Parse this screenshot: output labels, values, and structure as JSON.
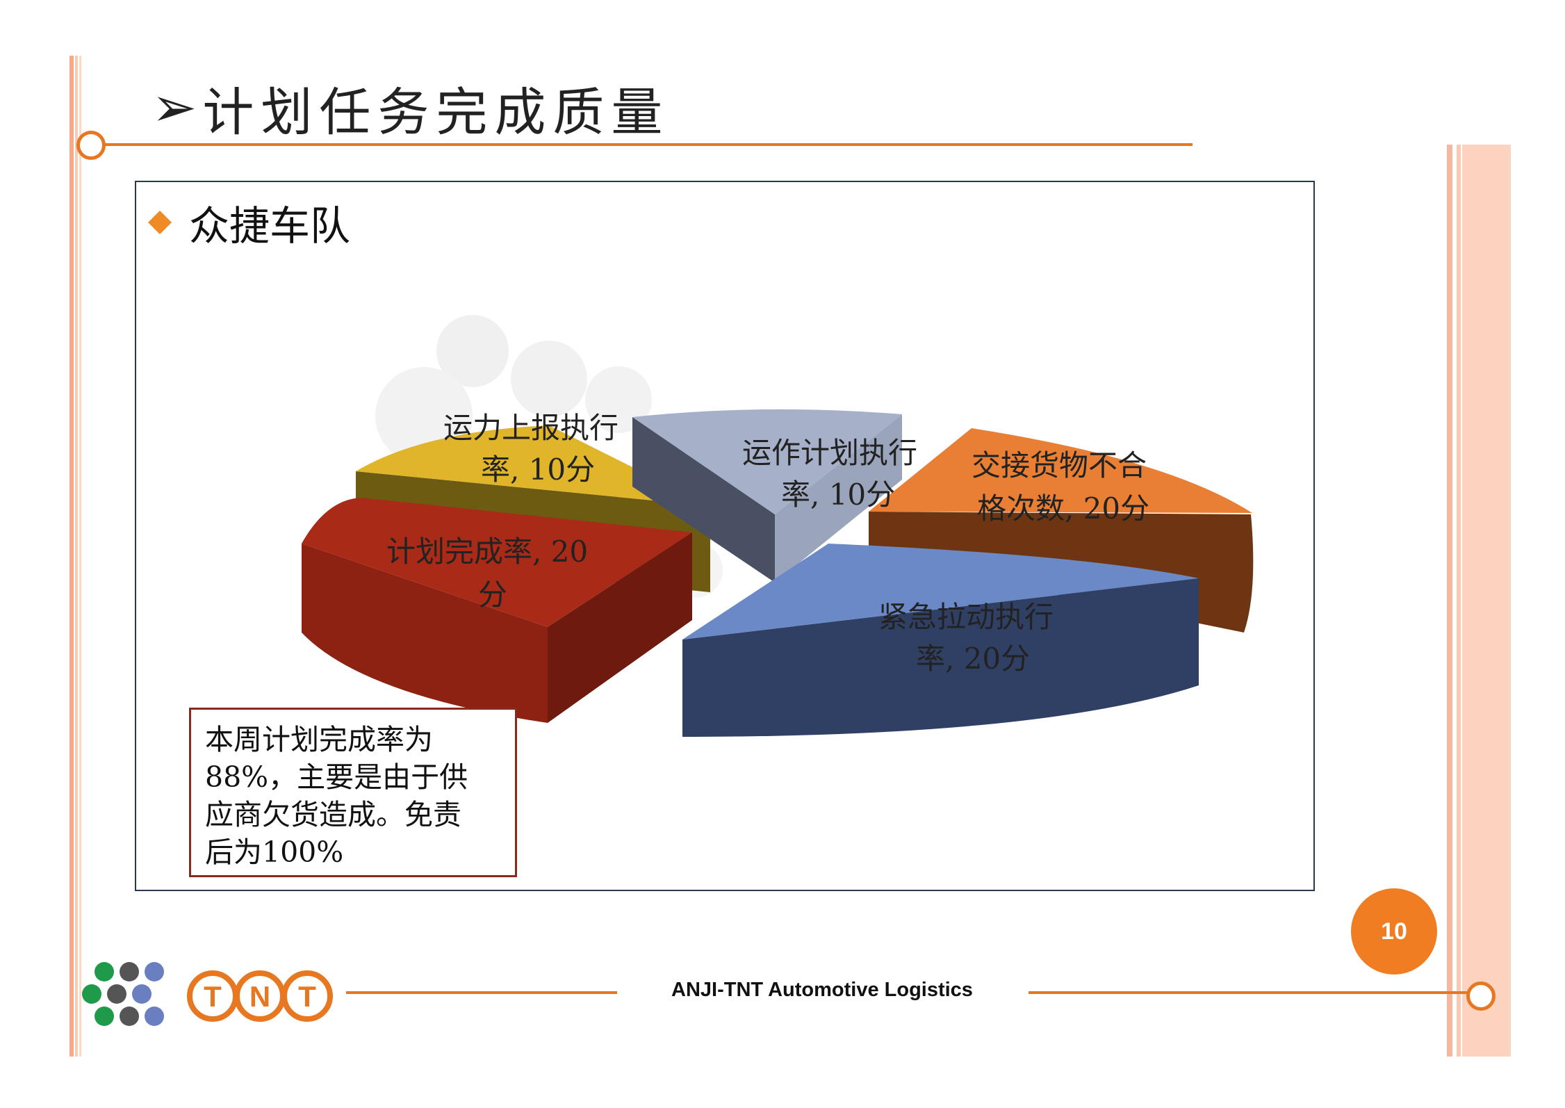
{
  "title": {
    "arrow": "➢",
    "text": "计划任务完成质量"
  },
  "subtitle": "众捷车队",
  "chart_data": {
    "type": "pie",
    "style": "3d-exploded",
    "slices": [
      {
        "label": "运作计划执行率, 10分",
        "value": 10,
        "color": "#8e9bb8"
      },
      {
        "label": "交接货物不合格次数, 20分",
        "value": 20,
        "color": "#e97f34"
      },
      {
        "label": "紧急拉动执行率, 20分",
        "value": 20,
        "color": "#6b89c6"
      },
      {
        "label": "计划完成率, 20分",
        "value": 20,
        "color": "#a82a17"
      },
      {
        "label": "运力上报执行率, 10分",
        "value": 10,
        "color": "#e0b52a"
      }
    ],
    "label_lines": {
      "operation": [
        "运作计划执行",
        "率, 10分"
      ],
      "handover": [
        "交接货物不合",
        "格次数, 20分"
      ],
      "emergency": [
        "紧急拉动执行",
        "率, 20分"
      ],
      "plan_completion": [
        "计划完成率, 20",
        "分"
      ],
      "capacity": [
        "运力上报执行",
        "率, 10分"
      ]
    }
  },
  "note": "本周计划完成率为\n88%，主要是由于供\n应商欠货造成。免责\n后为100%",
  "page_number": "10",
  "footer": {
    "company": "ANJI-TNT Automotive Logistics",
    "logo_text": [
      "T",
      "N",
      "T"
    ]
  },
  "colors": {
    "accent": "#e87722",
    "frame": "#2a3550"
  }
}
